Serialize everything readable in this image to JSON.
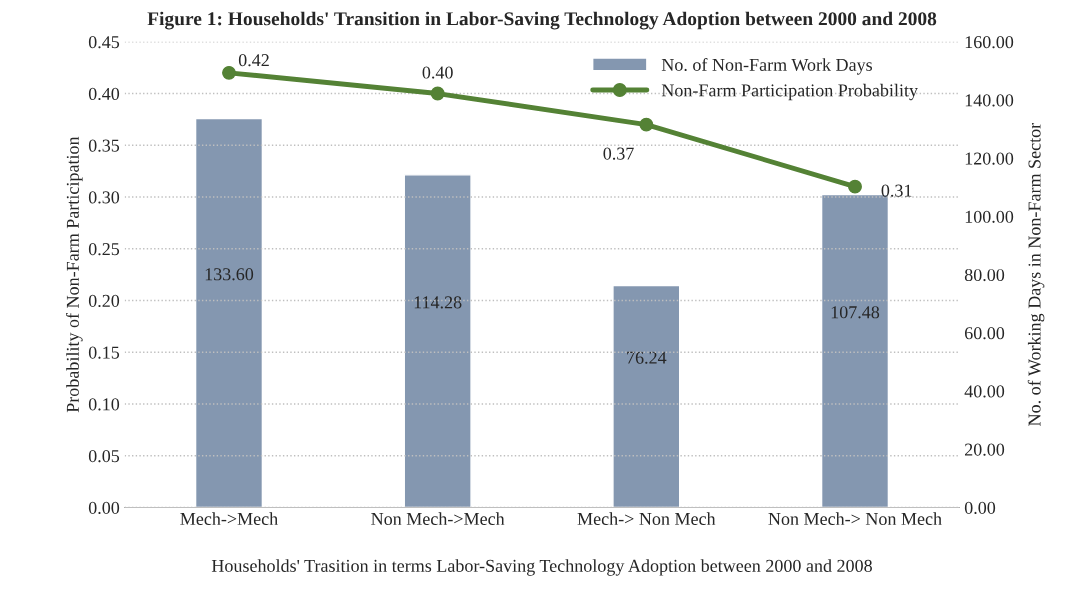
{
  "chart_data": {
    "type": "bar",
    "title": "Figure 1: Households' Transition in Labor-Saving Technology Adoption between 2000 and 2008",
    "xlabel": "Households' Trasition in terms Labor-Saving Technology Adoption between 2000 and 2008",
    "ylabel": "Probability of Non-Farm Participation",
    "y2label": "No. of Working Days in Non-Farm Sector",
    "categories": [
      "Mech->Mech",
      "Non Mech->Mech",
      "Mech-> Non Mech",
      "Non Mech-> Non Mech"
    ],
    "series": [
      {
        "name": "No. of Non-Farm Work Days",
        "axis": "y2",
        "color": "#8497b0",
        "values": [
          133.6,
          114.28,
          76.24,
          107.48
        ],
        "value_labels": [
          "133.60",
          "114.28",
          "76.24",
          "107.48"
        ]
      },
      {
        "name": "Non-Farm Participation Probability",
        "type": "line",
        "axis": "y",
        "color": "#548235",
        "marker": "circle",
        "values": [
          0.42,
          0.4,
          0.37,
          0.31
        ],
        "value_labels": [
          "0.42",
          "0.40",
          "0.37",
          "0.31"
        ]
      }
    ],
    "ylim": [
      0,
      0.45
    ],
    "yticks": [
      {
        "value": 0,
        "label": "0.00"
      },
      {
        "value": 0.05,
        "label": "0.05"
      },
      {
        "value": 0.1,
        "label": "0.10"
      },
      {
        "value": 0.15,
        "label": "0.15"
      },
      {
        "value": 0.2,
        "label": "0.20"
      },
      {
        "value": 0.25,
        "label": "0.25"
      },
      {
        "value": 0.3,
        "label": "0.30"
      },
      {
        "value": 0.35,
        "label": "0.35"
      },
      {
        "value": 0.4,
        "label": "0.40"
      },
      {
        "value": 0.45,
        "label": "0.45"
      }
    ],
    "y2lim": [
      0,
      160
    ],
    "y2ticks": [
      {
        "value": 0,
        "label": "0.00"
      },
      {
        "value": 20,
        "label": "20.00"
      },
      {
        "value": 40,
        "label": "40.00"
      },
      {
        "value": 60,
        "label": "60.00"
      },
      {
        "value": 80,
        "label": "80.00"
      },
      {
        "value": 100,
        "label": "100.00"
      },
      {
        "value": 120,
        "label": "120.00"
      },
      {
        "value": 140,
        "label": "140.00"
      },
      {
        "value": 160,
        "label": "160.00"
      }
    ],
    "grid": "y",
    "legend": "top right"
  }
}
